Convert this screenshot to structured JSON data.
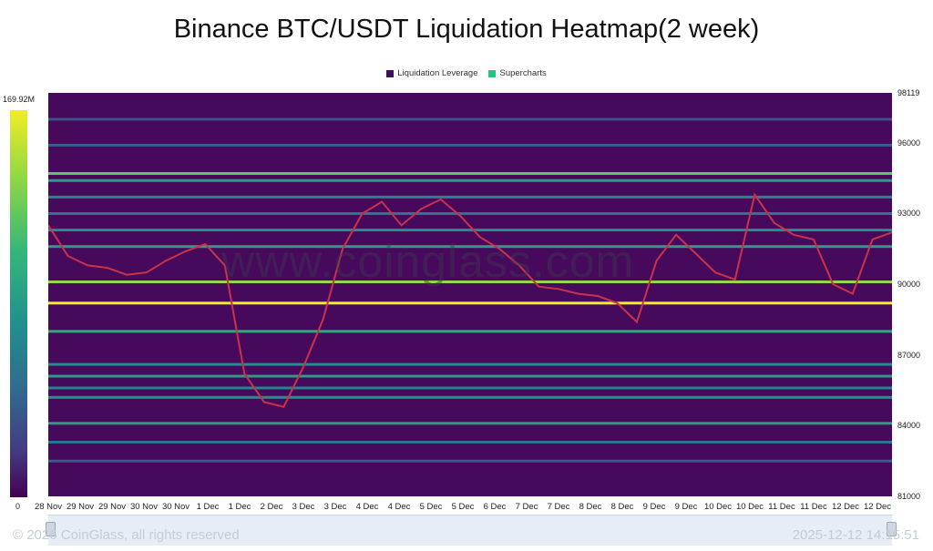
{
  "chart_data": {
    "type": "heatmap",
    "title": "Binance BTC/USDT Liquidation Heatmap(2 week)",
    "legend": [
      {
        "label": "Liquidation Leverage",
        "color": "#3b1163"
      },
      {
        "label": "Supercharts",
        "color": "#2fbf83"
      }
    ],
    "colorbar": {
      "max_label": "169.92M",
      "min_label": "0"
    },
    "y_ticks": [
      "98119",
      "96000",
      "93000",
      "90000",
      "87000",
      "84000",
      "81000"
    ],
    "y_tick_values": [
      98119,
      96000,
      93000,
      90000,
      87000,
      84000,
      81000
    ],
    "ylim": [
      81000,
      98119
    ],
    "x_ticks": [
      "28 Nov",
      "29 Nov",
      "29 Nov",
      "30 Nov",
      "30 Nov",
      "1 Dec",
      "1 Dec",
      "2 Dec",
      "3 Dec",
      "3 Dec",
      "4 Dec",
      "4 Dec",
      "5 Dec",
      "5 Dec",
      "6 Dec",
      "7 Dec",
      "7 Dec",
      "8 Dec",
      "8 Dec",
      "9 Dec",
      "9 Dec",
      "10 Dec",
      "10 Dec",
      "11 Dec",
      "11 Dec",
      "12 Dec",
      "12 Dec"
    ],
    "price_series": {
      "name": "BTC price",
      "values": [
        92500,
        91200,
        90800,
        90700,
        90400,
        90500,
        91000,
        91400,
        91700,
        90800,
        86200,
        85000,
        84800,
        86500,
        88500,
        91500,
        93000,
        93500,
        92500,
        93200,
        93600,
        92900,
        92000,
        91500,
        90800,
        89900,
        89800,
        89600,
        89500,
        89200,
        88400,
        91000,
        92100,
        91300,
        90500,
        90200,
        93800,
        92600,
        92100,
        91900,
        90000,
        89600,
        91900,
        92200
      ]
    },
    "liquidation_levels": [
      {
        "price": 97000,
        "intensity": 0.25
      },
      {
        "price": 95900,
        "intensity": 0.3
      },
      {
        "price": 94700,
        "intensity": 0.75
      },
      {
        "price": 94400,
        "intensity": 0.55
      },
      {
        "price": 93700,
        "intensity": 0.45
      },
      {
        "price": 93000,
        "intensity": 0.4
      },
      {
        "price": 92300,
        "intensity": 0.5
      },
      {
        "price": 91600,
        "intensity": 0.55
      },
      {
        "price": 90100,
        "intensity": 0.85
      },
      {
        "price": 89200,
        "intensity": 1.0
      },
      {
        "price": 88000,
        "intensity": 0.6
      },
      {
        "price": 86600,
        "intensity": 0.5
      },
      {
        "price": 86100,
        "intensity": 0.55
      },
      {
        "price": 85600,
        "intensity": 0.45
      },
      {
        "price": 85200,
        "intensity": 0.5
      },
      {
        "price": 84100,
        "intensity": 0.55
      },
      {
        "price": 83300,
        "intensity": 0.4
      },
      {
        "price": 82500,
        "intensity": 0.3
      }
    ]
  },
  "watermark": "www.coinglass.com",
  "footer": {
    "copyright": "© 2026 CoinGlass, all rights reserved",
    "timestamp": "2025-12-12 14:15:51"
  }
}
